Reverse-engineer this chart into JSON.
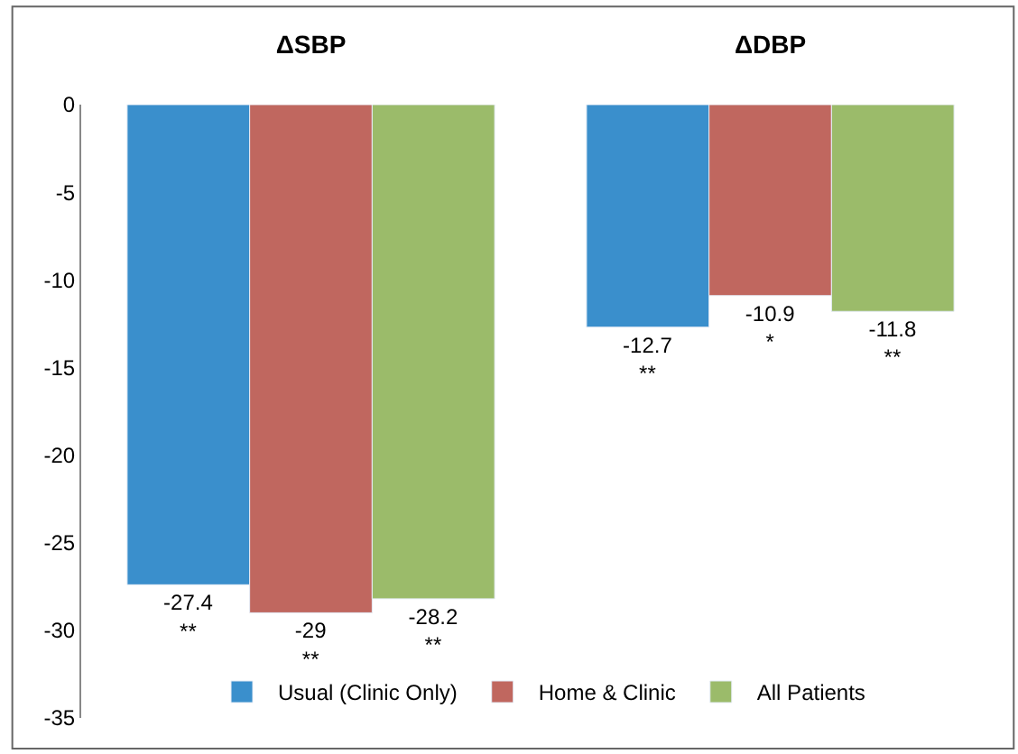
{
  "chart_data": {
    "type": "bar",
    "categories": [
      "ΔSBP",
      "ΔDBP"
    ],
    "series": [
      {
        "name": "Usual (Clinic Only)",
        "color": "#3a8fcc",
        "values": [
          -27.4,
          -12.7
        ],
        "value_labels": [
          "-27.4\n**",
          "-12.7\n**"
        ]
      },
      {
        "name": "Home & Clinic",
        "color": "#c0675f",
        "values": [
          -29,
          -10.9
        ],
        "value_labels": [
          "-29\n**",
          "-10.9\n*"
        ]
      },
      {
        "name": "All Patients",
        "color": "#9bbb6a",
        "values": [
          -28.2,
          -11.8
        ],
        "value_labels": [
          "-28.2\n**",
          "-11.8\n**"
        ]
      }
    ],
    "ylim": [
      -35,
      0
    ],
    "yticks": [
      0,
      -5,
      -10,
      -15,
      -20,
      -25,
      -30,
      -35
    ],
    "legend": "bottom"
  }
}
